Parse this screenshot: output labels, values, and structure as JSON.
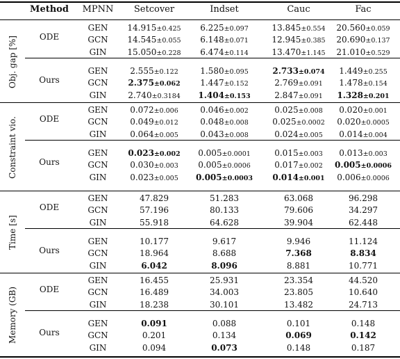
{
  "header": {
    "method": "Method",
    "mpnn": "MPNN",
    "datasets": [
      "Setcover",
      "Indset",
      "Cauc",
      "Fac"
    ]
  },
  "sections": [
    {
      "label": "Obj. gap [%]",
      "groups": [
        {
          "method": "ODE",
          "rows": [
            {
              "mpnn": "GEN",
              "cells": [
                {
                  "v": "14.915",
                  "pm": "±0.425"
                },
                {
                  "v": "6.225",
                  "pm": "±0.097"
                },
                {
                  "v": "13.845",
                  "pm": "±0.554"
                },
                {
                  "v": "20.560",
                  "pm": "±0.059"
                }
              ]
            },
            {
              "mpnn": "GCN",
              "cells": [
                {
                  "v": "14.545",
                  "pm": "±0.055"
                },
                {
                  "v": "6.148",
                  "pm": "±0.071"
                },
                {
                  "v": "12.945",
                  "pm": "±0.385"
                },
                {
                  "v": "20.690",
                  "pm": "±0.137"
                }
              ]
            },
            {
              "mpnn": "GIN",
              "cells": [
                {
                  "v": "15.050",
                  "pm": "±0.228"
                },
                {
                  "v": "6.474",
                  "pm": "±0.114"
                },
                {
                  "v": "13.470",
                  "pm": "±1.145"
                },
                {
                  "v": "21.010",
                  "pm": "±0.529"
                }
              ]
            }
          ]
        },
        {
          "method": "Ours",
          "rows": [
            {
              "mpnn": "GEN",
              "cells": [
                {
                  "v": "2.555",
                  "pm": "±0.122"
                },
                {
                  "v": "1.580",
                  "pm": "±0.095"
                },
                {
                  "v": "2.733",
                  "pm": "±0.074",
                  "b": true
                },
                {
                  "v": "1.449",
                  "pm": "±0.255"
                }
              ]
            },
            {
              "mpnn": "GCN",
              "cells": [
                {
                  "v": "2.375",
                  "pm": "±0.062",
                  "b": true
                },
                {
                  "v": "1.447",
                  "pm": "±0.152"
                },
                {
                  "v": "2.769",
                  "pm": "±0.091"
                },
                {
                  "v": "1.478",
                  "pm": "±0.154"
                }
              ]
            },
            {
              "mpnn": "GIN",
              "cells": [
                {
                  "v": "2.740",
                  "pm": "±0.3184"
                },
                {
                  "v": "1.404",
                  "pm": "±0.153",
                  "b": true
                },
                {
                  "v": "2.847",
                  "pm": "±0.091"
                },
                {
                  "v": "1.328",
                  "pm": "±0.201",
                  "b": true
                }
              ]
            }
          ]
        }
      ]
    },
    {
      "label": "Constraint vio.",
      "groups": [
        {
          "method": "ODE",
          "rows": [
            {
              "mpnn": "GEN",
              "cells": [
                {
                  "v": "0.072",
                  "pm": "±0.006"
                },
                {
                  "v": "0.046",
                  "pm": "±0.002"
                },
                {
                  "v": "0.025",
                  "pm": "±0.008"
                },
                {
                  "v": "0.020",
                  "pm": "±0.001"
                }
              ]
            },
            {
              "mpnn": "GCN",
              "cells": [
                {
                  "v": "0.049",
                  "pm": "±0.012"
                },
                {
                  "v": "0.048",
                  "pm": "±0.008"
                },
                {
                  "v": "0.025",
                  "pm": "±0.0002"
                },
                {
                  "v": "0.020",
                  "pm": "±0.0005"
                }
              ]
            },
            {
              "mpnn": "GIN",
              "cells": [
                {
                  "v": "0.064",
                  "pm": "±0.005"
                },
                {
                  "v": "0.043",
                  "pm": "±0.008"
                },
                {
                  "v": "0.024",
                  "pm": "±0.005"
                },
                {
                  "v": "0.014",
                  "pm": "±0.004"
                }
              ]
            }
          ]
        },
        {
          "method": "Ours",
          "rows": [
            {
              "mpnn": "GEN",
              "cells": [
                {
                  "v": "0.023",
                  "pm": "±0.002",
                  "b": true
                },
                {
                  "v": "0.005",
                  "pm": "±0.0001"
                },
                {
                  "v": "0.015",
                  "pm": "±0.003"
                },
                {
                  "v": "0.013",
                  "pm": "±0.003"
                }
              ]
            },
            {
              "mpnn": "GCN",
              "cells": [
                {
                  "v": "0.030",
                  "pm": "±0.003"
                },
                {
                  "v": "0.005",
                  "pm": "±0.0006"
                },
                {
                  "v": "0.017",
                  "pm": "±0.002"
                },
                {
                  "v": "0.005",
                  "pm": "±0.0006",
                  "b": true
                }
              ]
            },
            {
              "mpnn": "GIN",
              "cells": [
                {
                  "v": "0.023",
                  "pm": "±0.005"
                },
                {
                  "v": "0.005",
                  "pm": "±0.0003",
                  "b": true
                },
                {
                  "v": "0.014",
                  "pm": "±0.001",
                  "b": true
                },
                {
                  "v": "0.006",
                  "pm": "±0.0006"
                }
              ]
            }
          ]
        }
      ]
    },
    {
      "label": "Time [s]",
      "groups": [
        {
          "method": "ODE",
          "rows": [
            {
              "mpnn": "GEN",
              "cells": [
                {
                  "v": "47.829"
                },
                {
                  "v": "51.283"
                },
                {
                  "v": "63.068"
                },
                {
                  "v": "96.298"
                }
              ]
            },
            {
              "mpnn": "GCN",
              "cells": [
                {
                  "v": "57.196"
                },
                {
                  "v": "80.133"
                },
                {
                  "v": "79.606"
                },
                {
                  "v": "34.297"
                }
              ]
            },
            {
              "mpnn": "GIN",
              "cells": [
                {
                  "v": "55.918"
                },
                {
                  "v": "64.628"
                },
                {
                  "v": "39.904"
                },
                {
                  "v": "62.448"
                }
              ]
            }
          ]
        },
        {
          "method": "Ours",
          "rows": [
            {
              "mpnn": "GEN",
              "cells": [
                {
                  "v": "10.177"
                },
                {
                  "v": "9.617"
                },
                {
                  "v": "9.946"
                },
                {
                  "v": "11.124"
                }
              ]
            },
            {
              "mpnn": "GCN",
              "cells": [
                {
                  "v": "18.964"
                },
                {
                  "v": "8.688"
                },
                {
                  "v": "7.368",
                  "b": true
                },
                {
                  "v": "8.834",
                  "b": true
                }
              ]
            },
            {
              "mpnn": "GIN",
              "cells": [
                {
                  "v": "6.042",
                  "b": true
                },
                {
                  "v": "8.096",
                  "b": true
                },
                {
                  "v": "8.881"
                },
                {
                  "v": "10.771"
                }
              ]
            }
          ]
        }
      ]
    },
    {
      "label": "Memory (GB)",
      "groups": [
        {
          "method": "ODE",
          "rows": [
            {
              "mpnn": "GEN",
              "cells": [
                {
                  "v": "16.455"
                },
                {
                  "v": "25.931"
                },
                {
                  "v": "23.354"
                },
                {
                  "v": "44.520"
                }
              ]
            },
            {
              "mpnn": "GCN",
              "cells": [
                {
                  "v": "16.489"
                },
                {
                  "v": "34.003"
                },
                {
                  "v": "23.805"
                },
                {
                  "v": "10.640"
                }
              ]
            },
            {
              "mpnn": "GIN",
              "cells": [
                {
                  "v": "18.238"
                },
                {
                  "v": "30.101"
                },
                {
                  "v": "13.482"
                },
                {
                  "v": "24.713"
                }
              ]
            }
          ]
        },
        {
          "method": "Ours",
          "rows": [
            {
              "mpnn": "GEN",
              "cells": [
                {
                  "v": "0.091",
                  "b": true
                },
                {
                  "v": "0.088"
                },
                {
                  "v": "0.101"
                },
                {
                  "v": "0.148"
                }
              ]
            },
            {
              "mpnn": "GCN",
              "cells": [
                {
                  "v": "0.201"
                },
                {
                  "v": "0.134"
                },
                {
                  "v": "0.069",
                  "b": true
                },
                {
                  "v": "0.142",
                  "b": true
                }
              ]
            },
            {
              "mpnn": "GIN",
              "cells": [
                {
                  "v": "0.094"
                },
                {
                  "v": "0.073",
                  "b": true
                },
                {
                  "v": "0.148"
                },
                {
                  "v": "0.187"
                }
              ]
            }
          ]
        }
      ]
    }
  ]
}
